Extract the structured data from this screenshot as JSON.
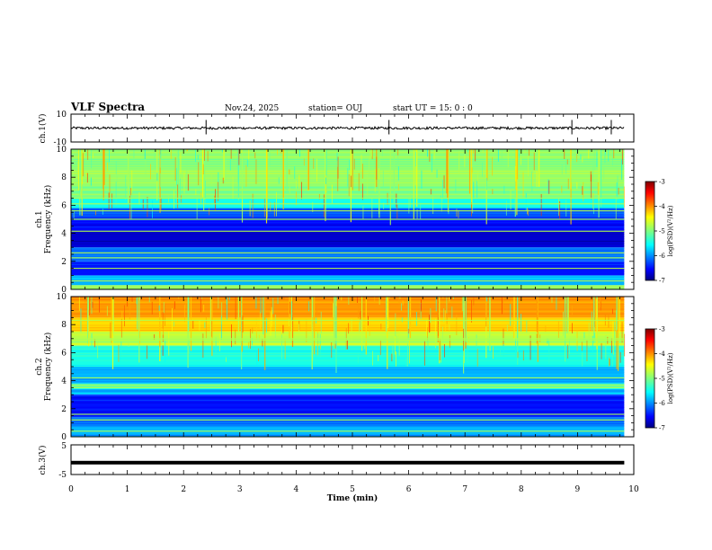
{
  "header": {
    "title": "VLF Spectra",
    "date": "Nov.24, 2025",
    "station": "station= OUJ",
    "start_ut": "start  UT =  15: 0  : 0"
  },
  "chart_data": [
    {
      "type": "line",
      "name": "ch1-waveform",
      "ylabel": "ch.1(V)",
      "ylim": [
        -10,
        10
      ],
      "y_tick_labels": [
        "10",
        "-10"
      ],
      "baseline": 0,
      "notable_spikes_min": [
        2.4,
        5.65,
        8.9,
        9.6
      ]
    },
    {
      "type": "heatmap",
      "name": "ch1-spectrogram",
      "ylabel": "ch.1\nFrequency (kHz)",
      "ylim": [
        0,
        10
      ],
      "y_tick_labels": [
        "0",
        "2",
        "4",
        "6",
        "8",
        "10"
      ],
      "x_range_min": [
        0,
        9.83
      ],
      "colorbar": {
        "label": "log(PSD)(V²/Hz)",
        "range": [
          -7,
          -3
        ],
        "tick_labels": [
          "-3",
          "-4",
          "-5",
          "-6",
          "-7"
        ]
      },
      "bands": [
        {
          "from": 0,
          "to": 0.3,
          "level": 0.5
        },
        {
          "from": 0.3,
          "to": 1.0,
          "level": 0.3
        },
        {
          "from": 1.0,
          "to": 2.0,
          "level": 0.14
        },
        {
          "from": 2.0,
          "to": 3.0,
          "level": 0.24
        },
        {
          "from": 3.0,
          "to": 4.2,
          "level": 0.08
        },
        {
          "from": 4.2,
          "to": 5.0,
          "level": 0.13
        },
        {
          "from": 5.0,
          "to": 5.8,
          "level": 0.2
        },
        {
          "from": 5.8,
          "to": 6.5,
          "level": 0.4
        },
        {
          "from": 6.5,
          "to": 7.5,
          "level": 0.5
        },
        {
          "from": 7.5,
          "to": 10.0,
          "level": 0.52
        }
      ],
      "tone_lines_khz": [
        0.2,
        0.6,
        1.5,
        2.25,
        2.6,
        4.15,
        5.0,
        5.6,
        6.1,
        6.5
      ],
      "burst_times_min": [
        0.15,
        0.55,
        1.05,
        1.55,
        1.9,
        2.35,
        2.7,
        3.0,
        3.45,
        3.8,
        4.2,
        4.55,
        5.0,
        5.45,
        5.7,
        6.1,
        6.7,
        7.1,
        7.4,
        7.9,
        8.3,
        8.9,
        9.4
      ]
    },
    {
      "type": "heatmap",
      "name": "ch2-spectrogram",
      "ylabel": "ch.2\nFrequency (kHz)",
      "ylim": [
        0,
        10
      ],
      "y_tick_labels": [
        "0",
        "2",
        "4",
        "6",
        "8",
        "10"
      ],
      "x_range_min": [
        0,
        9.83
      ],
      "colorbar": {
        "label": "log(PSD)(V²/Hz)",
        "range": [
          -7,
          -3
        ],
        "tick_labels": [
          "-3",
          "-4",
          "-5",
          "-6",
          "-7"
        ]
      },
      "bands": [
        {
          "from": 0,
          "to": 0.8,
          "level": 0.3
        },
        {
          "from": 0.8,
          "to": 1.4,
          "level": 0.25
        },
        {
          "from": 1.4,
          "to": 3.0,
          "level": 0.14
        },
        {
          "from": 3.0,
          "to": 3.4,
          "level": 0.3
        },
        {
          "from": 3.4,
          "to": 3.8,
          "level": 0.45
        },
        {
          "from": 3.8,
          "to": 5.0,
          "level": 0.3
        },
        {
          "from": 5.0,
          "to": 6.5,
          "level": 0.4
        },
        {
          "from": 6.5,
          "to": 7.5,
          "level": 0.56
        },
        {
          "from": 7.5,
          "to": 8.5,
          "level": 0.66
        },
        {
          "from": 8.5,
          "to": 10.0,
          "level": 0.72
        }
      ],
      "tone_lines_khz": [
        0.4,
        1.2,
        1.6,
        3.5,
        3.7,
        4.2,
        6.9,
        7.0,
        8.3
      ],
      "burst_times_min": [
        0.3,
        0.75,
        1.2,
        1.6,
        2.1,
        2.5,
        3.0,
        3.4,
        3.9,
        4.3,
        4.7,
        5.2,
        5.6,
        6.0,
        6.5,
        7.0,
        7.4,
        7.9,
        8.3,
        8.8,
        9.3,
        9.7
      ]
    },
    {
      "type": "line",
      "name": "ch3-waveform",
      "ylabel": "ch.3(V)",
      "ylim": [
        -5,
        5
      ],
      "y_tick_labels": [
        "5",
        "-5"
      ],
      "baseline": -1.0
    }
  ],
  "x_axis": {
    "label": "Time  (min)",
    "range": [
      0,
      10
    ],
    "tick_labels": [
      "0",
      "1",
      "2",
      "3",
      "4",
      "5",
      "6",
      "7",
      "8",
      "9",
      "10"
    ]
  }
}
